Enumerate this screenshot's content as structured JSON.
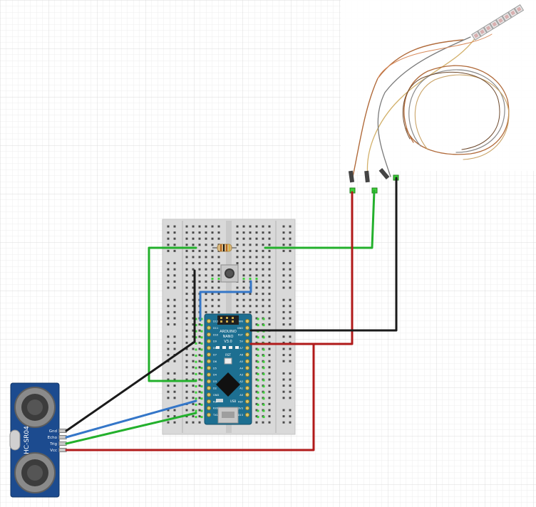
{
  "nano": {
    "brand": "ARDUINO",
    "model": "NANO",
    "version": "V3.0",
    "rst": "RST",
    "usb": "USB",
    "left_pins": [
      "D12",
      "D11",
      "D10",
      "D9",
      "D8",
      "D7",
      "D6",
      "D5",
      "D4",
      "D3",
      "D2",
      "GND",
      "RST",
      "RX0",
      "TX1"
    ],
    "right_pins": [
      "VIN",
      "GND",
      "RST",
      "5V",
      "A7",
      "A6",
      "A5",
      "A4",
      "A3",
      "A2",
      "A1",
      "A0",
      "REF",
      "3V3",
      "D13"
    ]
  },
  "sensor": {
    "name": "HC-SR04",
    "pins": [
      "Gnd",
      "Echo",
      "Trig",
      "Vcc"
    ]
  },
  "colors": {
    "green_wire": "#23b02c",
    "red_wire": "#b11a1a",
    "black_wire": "#1a1a1a",
    "blue_wire": "#3476c8",
    "board_blue": "#1d6f91",
    "sensor_blue": "#1c4b8f",
    "breadboard": "#dcdcdc"
  }
}
